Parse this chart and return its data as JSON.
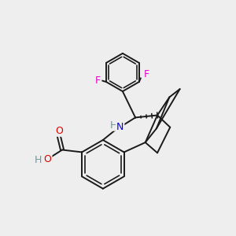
{
  "background_color": "#eeeeee",
  "bond_color": "#1a1a1a",
  "bond_width": 1.4,
  "F_color": "#e600cc",
  "N_color": "#0000ee",
  "O_color": "#dd0000",
  "H_color": "#6a9a9a",
  "figsize": [
    3.0,
    3.0
  ],
  "dpi": 100,
  "xlim": [
    0,
    10
  ],
  "ylim": [
    0,
    10
  ]
}
